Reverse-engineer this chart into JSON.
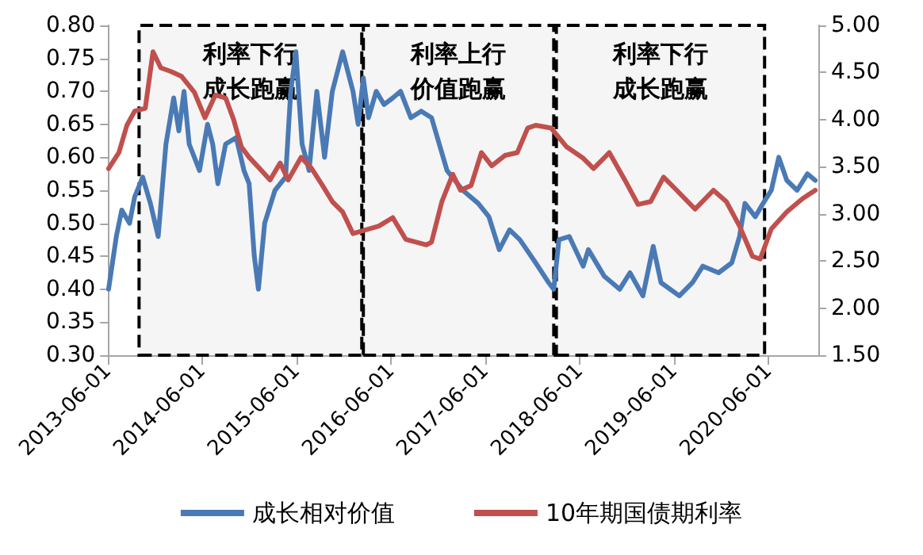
{
  "chart_data": {
    "type": "line",
    "xlim": [
      "2013-06-01",
      "2020-12-10"
    ],
    "xticks": [
      "2013-06-01",
      "2014-06-01",
      "2015-06-01",
      "2016-06-01",
      "2017-06-01",
      "2018-06-01",
      "2019-06-01",
      "2020-06-01"
    ],
    "ylim": [
      0.3,
      0.8
    ],
    "yticks": [
      {
        "value": 0.3,
        "label": "0.30"
      },
      {
        "value": 0.35,
        "label": "0.35"
      },
      {
        "value": 0.4,
        "label": "0.40"
      },
      {
        "value": 0.45,
        "label": "0.45"
      },
      {
        "value": 0.5,
        "label": "0.50"
      },
      {
        "value": 0.55,
        "label": "0.55"
      },
      {
        "value": 0.6,
        "label": "0.60"
      },
      {
        "value": 0.65,
        "label": "0.65"
      },
      {
        "value": 0.7,
        "label": "0.70"
      },
      {
        "value": 0.75,
        "label": "0.75"
      },
      {
        "value": 0.8,
        "label": "0.80"
      }
    ],
    "y2lim": [
      1.5,
      5
    ],
    "y2ticks": [
      {
        "value": 1.5,
        "label": "1.50"
      },
      {
        "value": 2,
        "label": "2.00"
      },
      {
        "value": 2.5,
        "label": "2.50"
      },
      {
        "value": 3,
        "label": "3.00"
      },
      {
        "value": 3.5,
        "label": "3.50"
      },
      {
        "value": 4,
        "label": "4.00"
      },
      {
        "value": 4.5,
        "label": "4.50"
      },
      {
        "value": 5,
        "label": "5.00"
      }
    ],
    "grid": false,
    "legend": "bottom",
    "marker": "none",
    "line_style": "solid",
    "bands": [
      {
        "axis": "x",
        "from": "2013-09-29",
        "to": "2016-02-08",
        "label": "利率下行成长跑赢",
        "color": "#000000"
      },
      {
        "axis": "x",
        "from": "2016-02-14",
        "to": "2018-02-20",
        "label": "利率上行价值跑赢",
        "color": "#000000"
      },
      {
        "axis": "x",
        "from": "2018-03-02",
        "to": "2020-05-16",
        "label": "利率下行成长跑赢",
        "color": "#000000"
      }
    ],
    "series": [
      {
        "name": "成长相对价值",
        "color": "#4a7ab5",
        "x": [
          "2013-06-03",
          "2013-07-03",
          "2013-07-24",
          "2013-08-23",
          "2013-09-12",
          "2013-10-13",
          "2013-11-12",
          "2013-12-12",
          "2014-01-11",
          "2014-02-10",
          "2014-03-02",
          "2014-03-22",
          "2014-04-11",
          "2014-05-21",
          "2014-06-21",
          "2014-07-11",
          "2014-07-31",
          "2014-08-30",
          "2014-10-10",
          "2014-11-09",
          "2014-11-29",
          "2014-12-19",
          "2015-01-04",
          "2015-01-28",
          "2015-03-09",
          "2015-04-19",
          "2015-05-09",
          "2015-05-29",
          "2015-06-22",
          "2015-07-19",
          "2015-08-18",
          "2015-09-17",
          "2015-10-17",
          "2015-11-26",
          "2016-01-05",
          "2016-01-25",
          "2016-02-14",
          "2016-03-05",
          "2016-04-04",
          "2016-05-04",
          "2016-06-07",
          "2016-07-07",
          "2016-08-16",
          "2016-09-25",
          "2016-11-04",
          "2017-01-03",
          "2017-03-05",
          "2017-05-04",
          "2017-06-14",
          "2017-07-24",
          "2017-09-02",
          "2017-10-12",
          "2017-12-12",
          "2018-01-31",
          "2018-02-20",
          "2018-03-12",
          "2018-04-21",
          "2018-06-14",
          "2018-07-04",
          "2018-09-03",
          "2018-11-02",
          "2018-12-12",
          "2019-01-31",
          "2019-03-12",
          "2019-04-11",
          "2019-06-21",
          "2019-08-11",
          "2019-09-20",
          "2019-11-20",
          "2020-01-10",
          "2020-02-09",
          "2020-03-01",
          "2020-04-10",
          "2020-05-10",
          "2020-06-11",
          "2020-07-10",
          "2020-08-10",
          "2020-09-19",
          "2020-10-29",
          "2020-11-28"
        ],
        "values": [
          0.4,
          0.48,
          0.52,
          0.5,
          0.54,
          0.57,
          0.53,
          0.48,
          0.62,
          0.69,
          0.64,
          0.7,
          0.62,
          0.58,
          0.65,
          0.62,
          0.56,
          0.62,
          0.63,
          0.58,
          0.56,
          0.45,
          0.4,
          0.5,
          0.55,
          0.57,
          0.7,
          0.76,
          0.62,
          0.58,
          0.7,
          0.6,
          0.7,
          0.76,
          0.7,
          0.65,
          0.72,
          0.66,
          0.7,
          0.68,
          0.69,
          0.7,
          0.66,
          0.67,
          0.66,
          0.58,
          0.55,
          0.53,
          0.51,
          0.46,
          0.49,
          0.475,
          0.44,
          0.41,
          0.4,
          0.475,
          0.48,
          0.435,
          0.46,
          0.42,
          0.4,
          0.425,
          0.39,
          0.465,
          0.41,
          0.39,
          0.41,
          0.435,
          0.425,
          0.44,
          0.48,
          0.53,
          0.51,
          0.53,
          0.55,
          0.6,
          0.565,
          0.55,
          0.575,
          0.565
        ]
      },
      {
        "name": "10年期国债期利率",
        "color": "#c0504d",
        "axis": "y2",
        "x": [
          "2013-06-03",
          "2013-07-13",
          "2013-08-13",
          "2013-09-12",
          "2013-10-23",
          "2013-11-22",
          "2013-12-22",
          "2014-01-31",
          "2014-03-12",
          "2014-05-01",
          "2014-06-11",
          "2014-07-21",
          "2014-08-30",
          "2014-09-30",
          "2014-10-30",
          "2014-11-29",
          "2015-01-09",
          "2015-02-18",
          "2015-03-29",
          "2015-04-29",
          "2015-06-18",
          "2015-07-29",
          "2015-09-07",
          "2015-10-17",
          "2015-11-26",
          "2016-01-05",
          "2016-02-24",
          "2016-04-14",
          "2016-06-07",
          "2016-07-27",
          "2016-10-15",
          "2016-11-04",
          "2016-12-14",
          "2017-01-25",
          "2017-02-24",
          "2017-04-06",
          "2017-05-16",
          "2017-06-25",
          "2017-08-15",
          "2017-10-02",
          "2017-11-11",
          "2017-12-12",
          "2018-02-10",
          "2018-04-11",
          "2018-06-14",
          "2018-07-24",
          "2018-09-23",
          "2018-11-22",
          "2019-01-12",
          "2019-03-02",
          "2019-04-21",
          "2019-06-11",
          "2019-08-21",
          "2019-10-31",
          "2019-12-20",
          "2020-02-09",
          "2020-03-30",
          "2020-04-29",
          "2020-06-11",
          "2020-08-10",
          "2020-10-09",
          "2020-11-28"
        ],
        "values": [
          3.48,
          3.65,
          3.94,
          4.09,
          4.12,
          4.72,
          4.55,
          4.51,
          4.46,
          4.29,
          4.02,
          4.26,
          4.23,
          4.0,
          3.71,
          3.6,
          3.48,
          3.36,
          3.54,
          3.36,
          3.6,
          3.48,
          3.31,
          3.13,
          3.02,
          2.79,
          2.83,
          2.87,
          2.96,
          2.73,
          2.67,
          2.7,
          3.13,
          3.42,
          3.25,
          3.3,
          3.65,
          3.51,
          3.62,
          3.65,
          3.91,
          3.94,
          3.91,
          3.71,
          3.59,
          3.48,
          3.65,
          3.36,
          3.1,
          3.13,
          3.39,
          3.25,
          3.05,
          3.25,
          3.13,
          2.87,
          2.55,
          2.52,
          2.84,
          3.02,
          3.16,
          3.25
        ]
      }
    ]
  }
}
